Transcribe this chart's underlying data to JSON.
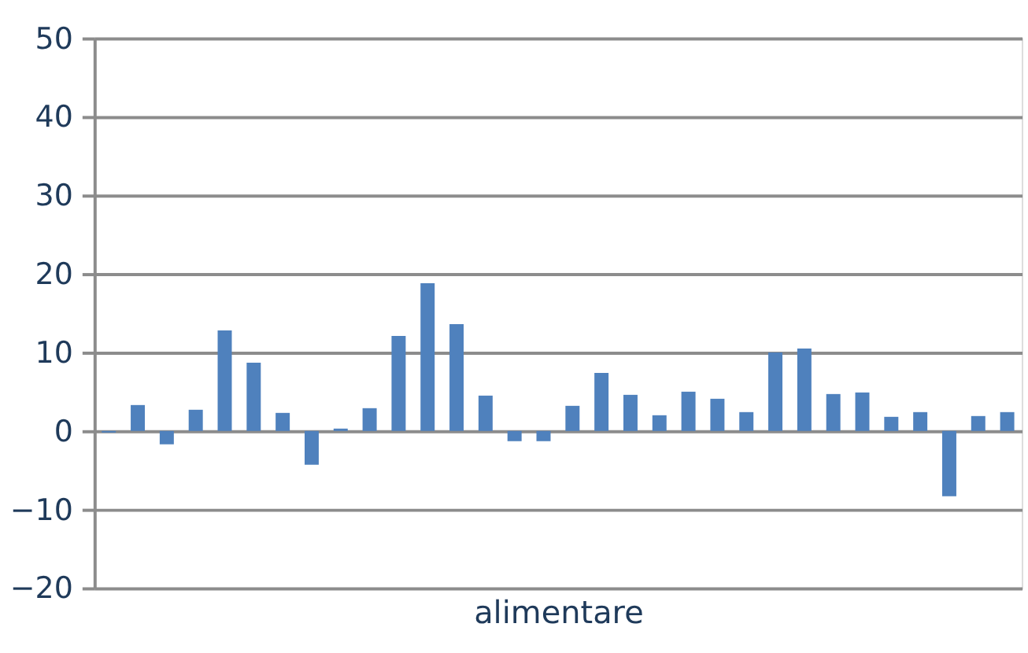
{
  "chart_data": {
    "type": "bar",
    "xlabel": "alimentare",
    "categories": [
      null,
      null,
      null,
      null,
      null,
      null,
      null,
      null,
      null,
      null,
      null,
      null,
      null,
      null,
      null,
      null,
      null,
      null,
      null,
      null,
      null,
      null,
      null,
      null,
      null,
      null,
      null,
      null,
      null,
      null,
      null,
      null
    ],
    "values": [
      -0.2,
      3.3,
      -1.7,
      2.7,
      12.8,
      8.7,
      2.3,
      -4.3,
      0.3,
      2.9,
      12.1,
      18.8,
      13.6,
      4.5,
      -1.3,
      -1.3,
      3.2,
      7.4,
      4.6,
      2.0,
      5.0,
      4.1,
      2.4,
      10.0,
      10.5,
      4.7,
      4.9,
      1.8,
      2.4,
      -8.3,
      1.9,
      2.4
    ],
    "color": "#4f81bd",
    "ylim": [
      -20,
      50
    ],
    "yticks": [
      -20,
      -10,
      0,
      10,
      20,
      30,
      40,
      50
    ],
    "grid": "y"
  }
}
